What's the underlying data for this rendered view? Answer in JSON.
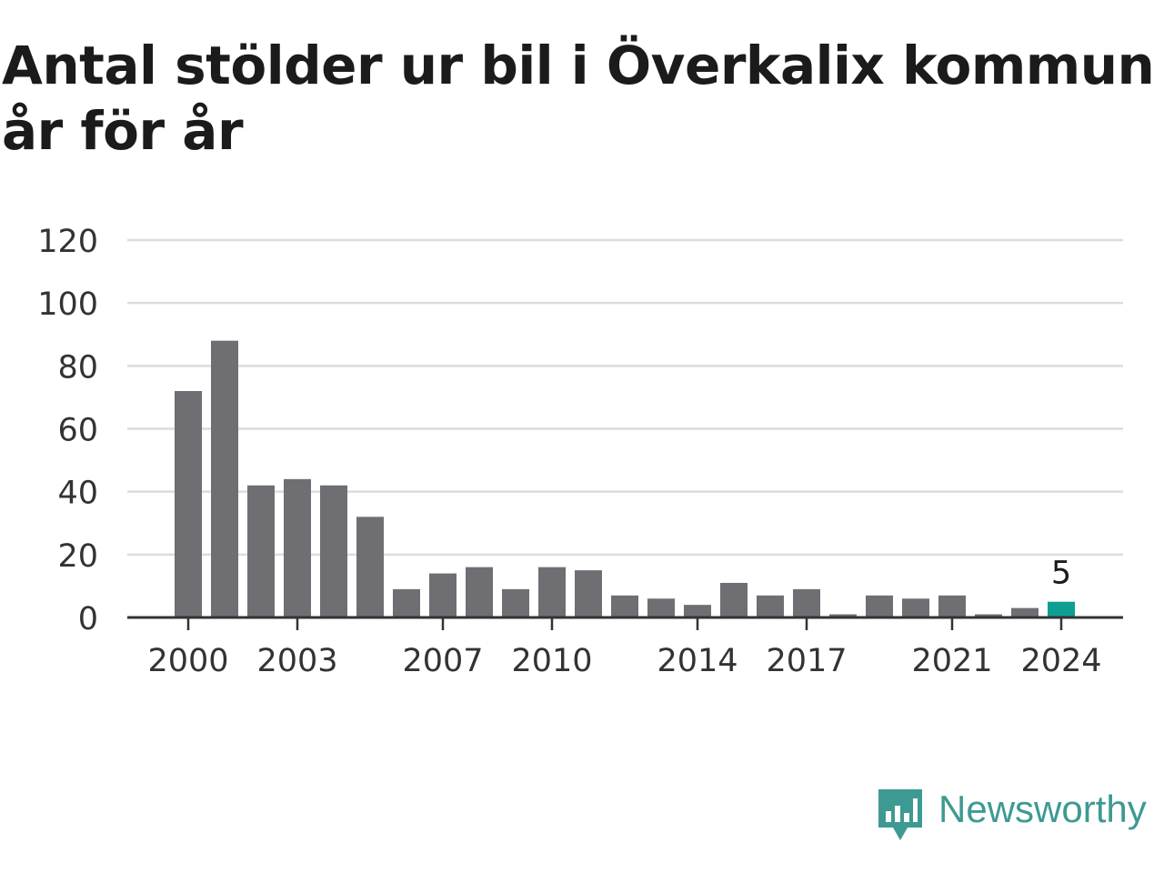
{
  "title": "Antal stölder ur bil i Överkalix kommun år för år",
  "brand": {
    "name": "Newsworthy",
    "icon": "newsworthy-logo-icon",
    "color": "#3d9a92"
  },
  "colors": {
    "bar": "#6f6e73",
    "highlight": "#0e9e92",
    "grid": "#dcdcdc",
    "axis": "#333333",
    "text": "#333333"
  },
  "chart_data": {
    "type": "bar",
    "title": "Antal stölder ur bil i Överkalix kommun år för år",
    "xlabel": "",
    "ylabel": "",
    "categories": [
      "2000",
      "2001",
      "2002",
      "2003",
      "2004",
      "2005",
      "2006",
      "2007",
      "2008",
      "2009",
      "2010",
      "2011",
      "2012",
      "2013",
      "2014",
      "2015",
      "2016",
      "2017",
      "2018",
      "2019",
      "2020",
      "2021",
      "2022",
      "2023",
      "2024"
    ],
    "values": [
      72,
      88,
      42,
      44,
      42,
      32,
      9,
      14,
      16,
      9,
      16,
      15,
      7,
      6,
      4,
      11,
      7,
      9,
      1,
      7,
      6,
      7,
      1,
      3,
      5
    ],
    "highlight_category": "2024",
    "highlight_label": "5",
    "x_tick_labels": [
      "2000",
      "2003",
      "2007",
      "2010",
      "2014",
      "2017",
      "2021",
      "2024"
    ],
    "y_ticks": [
      0,
      20,
      40,
      60,
      80,
      100,
      120
    ],
    "ylim": [
      0,
      120
    ],
    "grid": true,
    "legend": "none"
  }
}
